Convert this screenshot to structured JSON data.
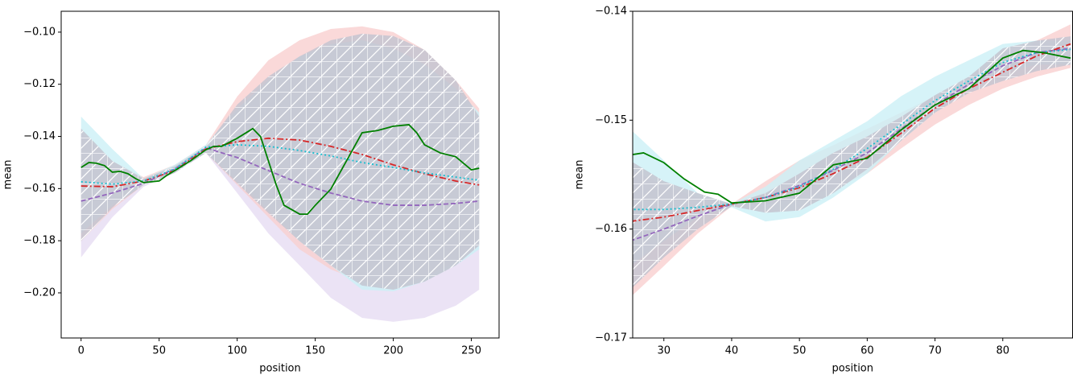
{
  "chart_data": [
    {
      "type": "line",
      "x_label": "position",
      "y_label": "mean",
      "xlim": [
        -12.75,
        267.75
      ],
      "xticks": [
        0,
        50,
        100,
        150,
        200,
        250
      ],
      "ylim": [
        -0.2173,
        -0.092
      ],
      "yticks": [
        {
          "value": -0.2,
          "label": "−0.20"
        },
        {
          "value": -0.18,
          "label": "−0.18"
        },
        {
          "value": -0.16,
          "label": "−0.16"
        },
        {
          "value": -0.14,
          "label": "−0.14"
        },
        {
          "value": -0.12,
          "label": "−0.12"
        },
        {
          "value": -0.1,
          "label": "−0.10"
        }
      ],
      "bands": [
        {
          "color": "#e6dcf2",
          "x": [
            0,
            20,
            40,
            60,
            80,
            100,
            120,
            140,
            160,
            180,
            200,
            220,
            240,
            255
          ],
          "upper": [
            -0.1494,
            -0.154,
            -0.1571,
            -0.1509,
            -0.1432,
            -0.1355,
            -0.1324,
            -0.1309,
            -0.1309,
            -0.1309,
            -0.1324,
            -0.134,
            -0.134,
            -0.1355
          ],
          "lower": [
            -0.1864,
            -0.171,
            -0.1593,
            -0.154,
            -0.1463,
            -0.1617,
            -0.1772,
            -0.1895,
            -0.2019,
            -0.2096,
            -0.2111,
            -0.2096,
            -0.2049,
            -0.1988
          ]
        },
        {
          "color": "#f9cfcf",
          "x": [
            0,
            20,
            40,
            60,
            80,
            100,
            120,
            140,
            160,
            180,
            200,
            220,
            240,
            255
          ],
          "upper": [
            -0.1386,
            -0.1494,
            -0.1556,
            -0.1509,
            -0.1432,
            -0.1247,
            -0.1108,
            -0.1031,
            -0.0988,
            -0.0978,
            -0.1,
            -0.1068,
            -0.1185,
            -0.1293
          ],
          "lower": [
            -0.1802,
            -0.1679,
            -0.1586,
            -0.154,
            -0.1463,
            -0.1586,
            -0.171,
            -0.1833,
            -0.191,
            -0.1957,
            -0.1972,
            -0.1941,
            -0.188,
            -0.1802
          ]
        },
        {
          "color": "#ccf0f6",
          "x": [
            0,
            20,
            40,
            60,
            80,
            100,
            120,
            140,
            160,
            180,
            200,
            220,
            240,
            255
          ],
          "upper": [
            -0.1324,
            -0.1448,
            -0.1562,
            -0.1509,
            -0.1432,
            -0.1293,
            -0.1185,
            -0.1093,
            -0.1046,
            -0.1031,
            -0.1062,
            -0.1123,
            -0.1216,
            -0.1309
          ],
          "lower": [
            -0.1772,
            -0.1664,
            -0.1586,
            -0.154,
            -0.1463,
            -0.1571,
            -0.1685,
            -0.1802,
            -0.1895,
            -0.1988,
            -0.1994,
            -0.1957,
            -0.1895,
            -0.1833
          ]
        },
        {
          "color": "#c4c4d0",
          "hatch": true,
          "x": [
            0,
            20,
            40,
            60,
            80,
            100,
            120,
            140,
            160,
            180,
            200,
            220,
            240,
            255
          ],
          "upper": [
            -0.137,
            -0.1494,
            -0.1562,
            -0.1515,
            -0.1438,
            -0.1278,
            -0.117,
            -0.1093,
            -0.1031,
            -0.1006,
            -0.1015,
            -0.1068,
            -0.1185,
            -0.1324
          ],
          "lower": [
            -0.1802,
            -0.1673,
            -0.1586,
            -0.154,
            -0.1463,
            -0.158,
            -0.1694,
            -0.1802,
            -0.1895,
            -0.1972,
            -0.1988,
            -0.1957,
            -0.1895,
            -0.1818
          ]
        }
      ],
      "series": [
        {
          "color": "#9467bd",
          "style": "dashed",
          "x": [
            0,
            20,
            40,
            60,
            80,
            100,
            120,
            140,
            160,
            180,
            200,
            220,
            240,
            255
          ],
          "values": [
            -0.1648,
            -0.1617,
            -0.158,
            -0.1525,
            -0.1444,
            -0.1481,
            -0.1531,
            -0.158,
            -0.1617,
            -0.1648,
            -0.1664,
            -0.1664,
            -0.1657,
            -0.1648
          ]
        },
        {
          "color": "#d62728",
          "style": "dashdot",
          "x": [
            0,
            20,
            40,
            60,
            80,
            100,
            120,
            140,
            160,
            180,
            200,
            220,
            240,
            255
          ],
          "values": [
            -0.159,
            -0.1593,
            -0.1571,
            -0.1531,
            -0.1448,
            -0.142,
            -0.1407,
            -0.1414,
            -0.1438,
            -0.1469,
            -0.1509,
            -0.1543,
            -0.1571,
            -0.1586
          ]
        },
        {
          "color": "#17becf",
          "style": "dotted",
          "x": [
            0,
            20,
            40,
            60,
            80,
            100,
            120,
            140,
            160,
            180,
            200,
            220,
            240,
            255
          ],
          "values": [
            -0.1574,
            -0.1583,
            -0.1571,
            -0.1525,
            -0.1441,
            -0.1432,
            -0.1438,
            -0.1454,
            -0.1475,
            -0.15,
            -0.1519,
            -0.154,
            -0.1556,
            -0.1568
          ]
        },
        {
          "color": "#008000",
          "style": "solid",
          "x": [
            0,
            5,
            10,
            15,
            20,
            25,
            30,
            35,
            40,
            45,
            50,
            55,
            60,
            70,
            80,
            85,
            90,
            100,
            110,
            115,
            120,
            125,
            130,
            140,
            145,
            150,
            160,
            170,
            180,
            190,
            200,
            210,
            215,
            220,
            230,
            240,
            250,
            255
          ],
          "values": [
            -0.1519,
            -0.15,
            -0.1503,
            -0.1512,
            -0.1537,
            -0.1534,
            -0.1543,
            -0.1562,
            -0.1577,
            -0.1574,
            -0.1571,
            -0.1549,
            -0.1531,
            -0.1494,
            -0.1451,
            -0.1438,
            -0.1438,
            -0.1407,
            -0.137,
            -0.1401,
            -0.1494,
            -0.1586,
            -0.1664,
            -0.1698,
            -0.1698,
            -0.1664,
            -0.1602,
            -0.1494,
            -0.1386,
            -0.1377,
            -0.1361,
            -0.1355,
            -0.1386,
            -0.1432,
            -0.1463,
            -0.1478,
            -0.1528,
            -0.1522
          ]
        }
      ]
    },
    {
      "type": "line",
      "x_label": "position",
      "y_label": "mean",
      "xlim": [
        25.4,
        90.3
      ],
      "xticks": [
        30,
        40,
        50,
        60,
        70,
        80
      ],
      "ylim": [
        -0.17,
        -0.14
      ],
      "yticks": [
        {
          "value": -0.17,
          "label": "−0.17"
        },
        {
          "value": -0.16,
          "label": "−0.16"
        },
        {
          "value": -0.15,
          "label": "−0.15"
        },
        {
          "value": -0.14,
          "label": "−0.14"
        }
      ],
      "bands": [
        {
          "color": "#f9cfcf",
          "x": [
            25,
            30,
            35,
            40,
            45,
            50,
            55,
            60,
            65,
            70,
            75,
            80,
            85,
            90
          ],
          "upper": [
            -0.1545,
            -0.156,
            -0.1571,
            -0.1577,
            -0.1556,
            -0.1537,
            -0.1523,
            -0.1508,
            -0.1493,
            -0.1478,
            -0.1464,
            -0.1449,
            -0.1427,
            -0.1412
          ],
          "lower": [
            -0.1663,
            -0.1634,
            -0.1604,
            -0.1579,
            -0.1578,
            -0.1571,
            -0.1563,
            -0.1549,
            -0.1526,
            -0.1504,
            -0.1486,
            -0.1471,
            -0.146,
            -0.1452
          ]
        },
        {
          "color": "#ccf0f6",
          "x": [
            25,
            30,
            35,
            40,
            45,
            50,
            55,
            60,
            65,
            70,
            75,
            80,
            85,
            90
          ],
          "upper": [
            -0.1508,
            -0.1537,
            -0.1567,
            -0.1577,
            -0.1561,
            -0.1537,
            -0.1519,
            -0.1501,
            -0.1478,
            -0.146,
            -0.1445,
            -0.143,
            -0.1427,
            -0.1427
          ],
          "lower": [
            -0.1634,
            -0.1611,
            -0.1589,
            -0.158,
            -0.1593,
            -0.1589,
            -0.1571,
            -0.1549,
            -0.1519,
            -0.1493,
            -0.1471,
            -0.1456,
            -0.1449,
            -0.1449
          ]
        },
        {
          "color": "#c4c4d0",
          "hatch": true,
          "x": [
            25,
            30,
            35,
            40,
            45,
            50,
            55,
            60,
            65,
            70,
            75,
            80,
            85,
            90
          ],
          "upper": [
            -0.1537,
            -0.1556,
            -0.1567,
            -0.1577,
            -0.1567,
            -0.1549,
            -0.153,
            -0.1515,
            -0.1497,
            -0.1477,
            -0.146,
            -0.1434,
            -0.1427,
            -0.1423
          ],
          "lower": [
            -0.1656,
            -0.1626,
            -0.16,
            -0.1579,
            -0.1585,
            -0.1583,
            -0.1567,
            -0.1545,
            -0.1519,
            -0.1493,
            -0.1475,
            -0.1464,
            -0.1455,
            -0.1449
          ]
        }
      ],
      "series": [
        {
          "color": "#9467bd",
          "style": "dashed",
          "x": [
            25,
            30,
            35,
            40,
            45,
            50,
            55,
            60,
            65,
            70,
            75,
            80,
            85,
            90
          ],
          "values": [
            -0.1611,
            -0.16,
            -0.1588,
            -0.1577,
            -0.1571,
            -0.156,
            -0.1546,
            -0.153,
            -0.1508,
            -0.1486,
            -0.1467,
            -0.145,
            -0.1438,
            -0.1434
          ]
        },
        {
          "color": "#d62728",
          "style": "dashdot",
          "x": [
            25,
            30,
            35,
            40,
            45,
            50,
            55,
            60,
            65,
            70,
            75,
            80,
            85,
            90
          ],
          "values": [
            -0.1593,
            -0.1589,
            -0.1583,
            -0.1577,
            -0.1571,
            -0.1562,
            -0.1549,
            -0.1534,
            -0.1512,
            -0.1489,
            -0.1471,
            -0.1456,
            -0.1441,
            -0.143
          ]
        },
        {
          "color": "#17becf",
          "style": "dotted",
          "x": [
            25,
            30,
            35,
            40,
            45,
            50,
            55,
            60,
            65,
            70,
            75,
            80,
            85,
            90
          ],
          "values": [
            -0.1582,
            -0.1582,
            -0.158,
            -0.1577,
            -0.1571,
            -0.1561,
            -0.1545,
            -0.1526,
            -0.1504,
            -0.1482,
            -0.1464,
            -0.1447,
            -0.1438,
            -0.1435
          ]
        },
        {
          "color": "#008000",
          "style": "solid",
          "x": [
            25,
            27,
            30,
            33,
            36,
            38,
            40,
            45,
            50,
            55,
            60,
            65,
            70,
            75,
            80,
            83,
            86,
            90
          ],
          "values": [
            -0.1532,
            -0.153,
            -0.1539,
            -0.1554,
            -0.1566,
            -0.1568,
            -0.1576,
            -0.1574,
            -0.1567,
            -0.1541,
            -0.1535,
            -0.1509,
            -0.1486,
            -0.1471,
            -0.1443,
            -0.1436,
            -0.1438,
            -0.1443
          ]
        }
      ]
    }
  ]
}
